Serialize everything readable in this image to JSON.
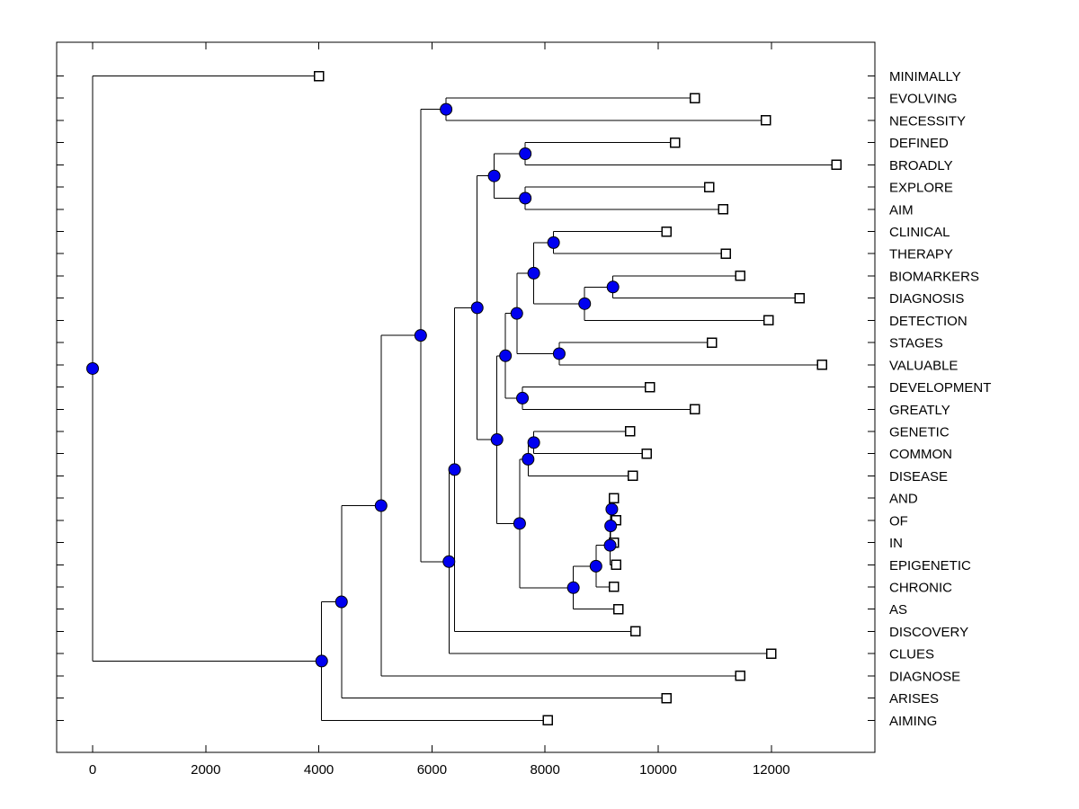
{
  "figure": {
    "title": "",
    "background": "#ffffff"
  },
  "chart_data": {
    "type": "dendrogram",
    "subtype": "phylogenetic-tree-square-branches",
    "orientation": "horizontal, leaves on right",
    "title": "",
    "xlabel": "",
    "ylabel": "",
    "grid": false,
    "legend": null,
    "xlim": [
      -640,
      13840
    ],
    "x_ticks": [
      0,
      2000,
      4000,
      6000,
      8000,
      10000,
      12000
    ],
    "x_tick_labels": [
      "0",
      "2000",
      "4000",
      "6000",
      "8000",
      "10000",
      "12000"
    ],
    "colors": {
      "branch": "#000000",
      "internal_node_fill": "#0000F0",
      "internal_node_edge": "#000000",
      "leaf_marker_fill": "#FFFFFF",
      "leaf_marker_edge": "#000000",
      "text": "#000000",
      "axes_box": "#000000",
      "background": "#FFFFFF"
    },
    "markers": {
      "internal_node": "filled-circle",
      "leaf_node": "open-square"
    },
    "leaves": [
      {
        "label": "MINIMALLY",
        "x": 4000
      },
      {
        "label": "EVOLVING",
        "x": 10650
      },
      {
        "label": "NECESSITY",
        "x": 11900
      },
      {
        "label": "DEFINED",
        "x": 10300
      },
      {
        "label": "BROADLY",
        "x": 13150
      },
      {
        "label": "EXPLORE",
        "x": 10900
      },
      {
        "label": "AIM",
        "x": 11150
      },
      {
        "label": "CLINICAL",
        "x": 10150
      },
      {
        "label": "THERAPY",
        "x": 11200
      },
      {
        "label": "BIOMARKERS",
        "x": 11450
      },
      {
        "label": "DIAGNOSIS",
        "x": 12500
      },
      {
        "label": "DETECTION",
        "x": 11950
      },
      {
        "label": "STAGES",
        "x": 10950
      },
      {
        "label": "VALUABLE",
        "x": 12900
      },
      {
        "label": "DEVELOPMENT",
        "x": 9850
      },
      {
        "label": "GREATLY",
        "x": 10650
      },
      {
        "label": "GENETIC",
        "x": 9500
      },
      {
        "label": "COMMON",
        "x": 9800
      },
      {
        "label": "DISEASE",
        "x": 9550
      },
      {
        "label": "AND",
        "x": 9220
      },
      {
        "label": "OF",
        "x": 9260
      },
      {
        "label": "IN",
        "x": 9220
      },
      {
        "label": "EPIGENETIC",
        "x": 9260
      },
      {
        "label": "CHRONIC",
        "x": 9220
      },
      {
        "label": "AS",
        "x": 9300
      },
      {
        "label": "DISCOVERY",
        "x": 9600
      },
      {
        "label": "CLUES",
        "x": 12000
      },
      {
        "label": "DIAGNOSE",
        "x": 11450
      },
      {
        "label": "ARISES",
        "x": 10150
      },
      {
        "label": "AIMING",
        "x": 8050
      }
    ],
    "nodes": [
      {
        "id": "node-evolving-necessity",
        "x": 6250,
        "children": [
          "EVOLVING",
          "NECESSITY"
        ]
      },
      {
        "id": "node-defined-broadly",
        "x": 7650,
        "children": [
          "DEFINED",
          "BROADLY"
        ]
      },
      {
        "id": "node-explore-aim",
        "x": 7650,
        "children": [
          "EXPLORE",
          "AIM"
        ]
      },
      {
        "id": "node-defined-aim",
        "x": 7100,
        "children": [
          "node-defined-broadly",
          "node-explore-aim"
        ]
      },
      {
        "id": "node-clinical-therapy",
        "x": 8150,
        "children": [
          "CLINICAL",
          "THERAPY"
        ]
      },
      {
        "id": "node-biomarkers-diagnosis",
        "x": 9200,
        "children": [
          "BIOMARKERS",
          "DIAGNOSIS"
        ]
      },
      {
        "id": "node-biomarkers-detection",
        "x": 8700,
        "children": [
          "node-biomarkers-diagnosis",
          "DETECTION"
        ]
      },
      {
        "id": "node-clinical-detection",
        "x": 7800,
        "children": [
          "node-clinical-therapy",
          "node-biomarkers-detection"
        ]
      },
      {
        "id": "node-stages-valuable",
        "x": 8250,
        "children": [
          "STAGES",
          "VALUABLE"
        ]
      },
      {
        "id": "node-clinical-valuable",
        "x": 7500,
        "children": [
          "node-clinical-detection",
          "node-stages-valuable"
        ]
      },
      {
        "id": "node-development-greatly",
        "x": 7600,
        "children": [
          "DEVELOPMENT",
          "GREATLY"
        ]
      },
      {
        "id": "node-clinical-greatly",
        "x": 7300,
        "children": [
          "node-clinical-valuable",
          "node-development-greatly"
        ]
      },
      {
        "id": "node-genetic-common",
        "x": 7800,
        "children": [
          "GENETIC",
          "COMMON"
        ]
      },
      {
        "id": "node-genetic-disease",
        "x": 7700,
        "children": [
          "node-genetic-common",
          "DISEASE"
        ]
      },
      {
        "id": "node-and-of",
        "x": 9180,
        "children": [
          "AND",
          "OF"
        ]
      },
      {
        "id": "node-and-in",
        "x": 9160,
        "children": [
          "node-and-of",
          "IN"
        ]
      },
      {
        "id": "node-and-epigenetic",
        "x": 9150,
        "children": [
          "node-and-in",
          "EPIGENETIC"
        ]
      },
      {
        "id": "node-and-chronic",
        "x": 8900,
        "children": [
          "node-and-epigenetic",
          "CHRONIC"
        ]
      },
      {
        "id": "node-and-as",
        "x": 8500,
        "children": [
          "node-and-chronic",
          "AS"
        ]
      },
      {
        "id": "node-genetic-as",
        "x": 7550,
        "children": [
          "node-genetic-disease",
          "node-and-as"
        ]
      },
      {
        "id": "node-clinical-as",
        "x": 7150,
        "children": [
          "node-clinical-greatly",
          "node-genetic-as"
        ]
      },
      {
        "id": "node-defined-as",
        "x": 6800,
        "children": [
          "node-defined-aim",
          "node-clinical-as"
        ]
      },
      {
        "id": "node-defined-discovery",
        "x": 6400,
        "children": [
          "node-defined-as",
          "DISCOVERY"
        ]
      },
      {
        "id": "node-defined-clues",
        "x": 6300,
        "children": [
          "node-defined-discovery",
          "CLUES"
        ]
      },
      {
        "id": "node-evolving-clues",
        "x": 5800,
        "children": [
          "node-evolving-necessity",
          "node-defined-clues"
        ]
      },
      {
        "id": "node-evolving-diagnose",
        "x": 5100,
        "children": [
          "node-evolving-clues",
          "DIAGNOSE"
        ]
      },
      {
        "id": "node-evolving-arises",
        "x": 4400,
        "children": [
          "node-evolving-diagnose",
          "ARISES"
        ]
      },
      {
        "id": "node-evolving-aiming",
        "x": 4050,
        "children": [
          "node-evolving-arises",
          "AIMING"
        ]
      },
      {
        "id": "node-root",
        "x": 0,
        "children": [
          "MINIMALLY",
          "node-evolving-aiming"
        ]
      }
    ]
  }
}
